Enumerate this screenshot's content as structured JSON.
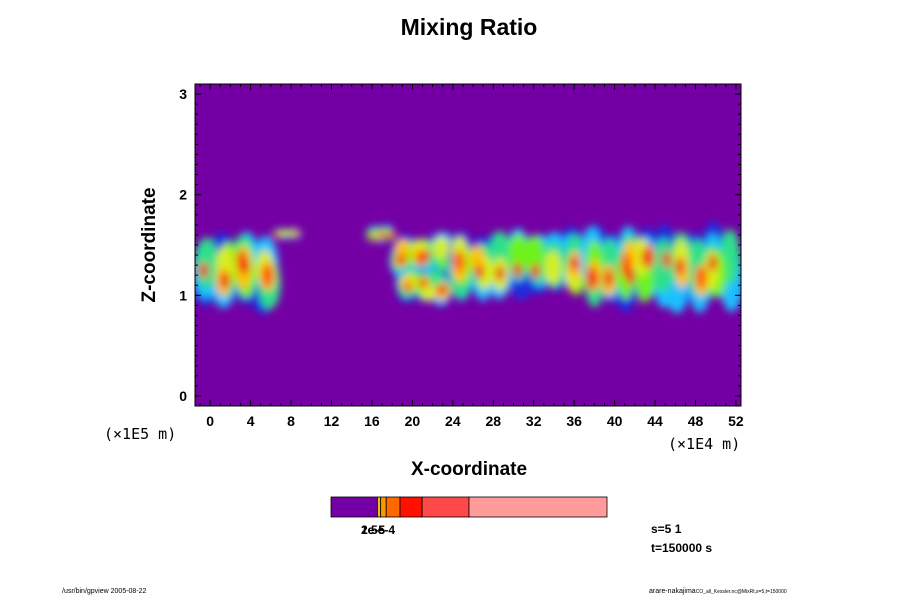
{
  "chart_data": {
    "type": "heatmap",
    "title": "Mixing Ratio",
    "xlabel": "X-coordinate",
    "ylabel": "Z-coordinate",
    "x_scale_label": "(×1E4 m)",
    "y_scale_label": "(×1E5 m)",
    "xlim": [
      -1.5,
      52.5
    ],
    "ylim": [
      -0.1,
      3.1
    ],
    "xticks": [
      "0",
      "4",
      "8",
      "12",
      "16",
      "20",
      "24",
      "28",
      "32",
      "36",
      "40",
      "44",
      "48",
      "52"
    ],
    "yticks": [
      "0",
      "1",
      "2",
      "3"
    ],
    "background_color": "#7400A5",
    "palette": [
      "#7400A5",
      "#1A2FE0",
      "#1FC0FF",
      "#2FE08A",
      "#6EF21A",
      "#D7EF1A",
      "#FFC200",
      "#FF5A00",
      "#F01414"
    ],
    "colorbar": {
      "labels": [
        "1e-5",
        "2e-5",
        "5e-4"
      ],
      "colors": [
        "#7400A5",
        "#E8C400",
        "#FF9800",
        "#FF6A00",
        "#FF1000",
        "#FF4848",
        "#FF9B9B"
      ],
      "edges": [
        0,
        0.168,
        0.18,
        0.2,
        0.25,
        0.33,
        0.5,
        1.0
      ]
    },
    "plumes": [
      {
        "x": [
          -1.5,
          6.5
        ],
        "z": [
          0.95,
          1.58
        ]
      },
      {
        "x": [
          6.5,
          8.5
        ],
        "z": [
          1.58,
          1.65
        ]
      },
      {
        "x": [
          16,
          18
        ],
        "z": [
          1.55,
          1.68
        ]
      },
      {
        "x": [
          18,
          24
        ],
        "z": [
          1.25,
          1.6
        ]
      },
      {
        "x": [
          19,
          23.5
        ],
        "z": [
          0.95,
          1.25
        ]
      },
      {
        "x": [
          24,
          37
        ],
        "z": [
          1.05,
          1.62
        ]
      },
      {
        "x": [
          37,
          52.5
        ],
        "z": [
          0.95,
          1.62
        ]
      }
    ],
    "annotations": [
      "s=5 1",
      "t=150000 s"
    ]
  },
  "footer": {
    "left": "/usr/bin/gpview 2005-08-22",
    "right_main": "arare-nakajima",
    "right_small": "CO_all_Kessler.nc@MixRt,s=5,t=150000"
  }
}
